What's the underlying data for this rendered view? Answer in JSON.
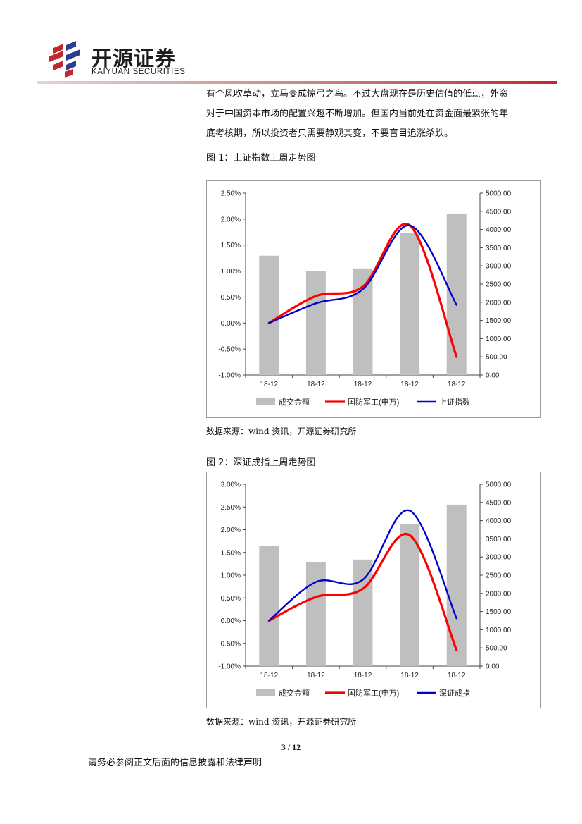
{
  "header": {
    "logo_cn": "开源证券",
    "logo_en": "KAIYUAN SECURITIES",
    "accent_red": "#c0282a",
    "accent_blue": "#2a3f8f"
  },
  "body_lines": [
    "有个风吹草动，立马变成惊弓之鸟。不过大盘现在是历史估值的低点，外资",
    "对于中国资本市场的配置兴趣不断增加。但国内当前处在资金面最紧张的年",
    "底考核期，所以投资者只需要静观其变，不要盲目追涨杀跌。"
  ],
  "figure1": {
    "caption": "图 1：上证指数上周走势图",
    "source": "数据来源：wind 资讯，开源证券研究所"
  },
  "figure2": {
    "caption": "图 2：深证成指上周走势图",
    "source": "数据来源：wind 资讯，开源证券研究所"
  },
  "chart_data": [
    {
      "type": "bar+line",
      "categories": [
        "18-12",
        "18-12",
        "18-12",
        "18-12",
        "18-12"
      ],
      "left_axis": {
        "ticks": [
          "2.50%",
          "2.00%",
          "1.50%",
          "1.00%",
          "0.50%",
          "0.00%",
          "-0.50%",
          "-1.00%"
        ],
        "range": [
          -1.0,
          2.5
        ]
      },
      "right_axis": {
        "ticks": [
          "5000.00",
          "4500.00",
          "4000.00",
          "3500.00",
          "3000.00",
          "2500.00",
          "2000.00",
          "1500.00",
          "1000.00",
          "500.00",
          "0.00"
        ],
        "range": [
          0,
          5000
        ]
      },
      "series": [
        {
          "name": "成交金额",
          "kind": "bar",
          "axis": "right",
          "color": "#bfbfbf",
          "values": [
            3280,
            2850,
            2930,
            3900,
            4430
          ]
        },
        {
          "name": "国防军工(申万)",
          "kind": "line",
          "axis": "left",
          "color": "#ff0000",
          "values": [
            0.0,
            0.52,
            0.7,
            1.88,
            -0.65
          ]
        },
        {
          "name": "上证指数",
          "kind": "line",
          "axis": "left",
          "color": "#0000cc",
          "values": [
            0.0,
            0.38,
            0.65,
            1.88,
            0.35
          ]
        }
      ]
    },
    {
      "type": "bar+line",
      "categories": [
        "18-12",
        "18-12",
        "18-12",
        "18-12",
        "18-12"
      ],
      "left_axis": {
        "ticks": [
          "3.00%",
          "2.50%",
          "2.00%",
          "1.50%",
          "1.00%",
          "0.50%",
          "0.00%",
          "-0.50%",
          "-1.00%"
        ],
        "range": [
          -1.0,
          3.0
        ]
      },
      "right_axis": {
        "ticks": [
          "5000.00",
          "4500.00",
          "4000.00",
          "3500.00",
          "3000.00",
          "2500.00",
          "2000.00",
          "1500.00",
          "1000.00",
          "500.00",
          "0.00"
        ],
        "range": [
          0,
          5000
        ]
      },
      "series": [
        {
          "name": "成交金额",
          "kind": "bar",
          "axis": "right",
          "color": "#bfbfbf",
          "values": [
            3300,
            2850,
            2930,
            3900,
            4440
          ]
        },
        {
          "name": "国防军工(申万)",
          "kind": "line",
          "axis": "left",
          "color": "#ff0000",
          "values": [
            0.0,
            0.52,
            0.7,
            1.88,
            -0.65
          ]
        },
        {
          "name": "深证成指",
          "kind": "line",
          "axis": "left",
          "color": "#0000cc",
          "values": [
            0.0,
            0.85,
            0.9,
            2.42,
            0.05
          ]
        }
      ]
    }
  ],
  "footer": {
    "page": "3 / 12",
    "disclaimer": "请务必参阅正文后面的信息披露和法律声明"
  }
}
